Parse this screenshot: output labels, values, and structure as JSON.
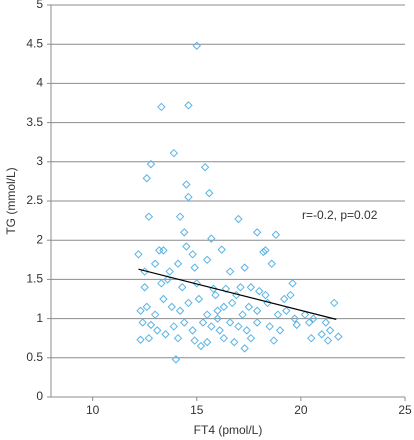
{
  "chart_data": {
    "type": "scatter",
    "xlabel": "FT4 (pmol/L)",
    "ylabel": "TG (mmol/L)",
    "annotation": "r=-0.2, p=0.02",
    "xlim": [
      8,
      25
    ],
    "xticks": [
      10,
      15,
      20,
      25
    ],
    "ylim": [
      0,
      5
    ],
    "yticks": [
      0,
      0.5,
      1,
      1.5,
      2,
      2.5,
      3,
      3.5,
      4,
      4.5,
      5
    ],
    "grid": true,
    "series": [
      {
        "color": "#5ab4e5",
        "x": [
          15.0,
          13.3,
          14.6,
          13.9,
          12.8,
          15.4,
          14.5,
          12.6,
          14.6,
          15.6,
          17.0,
          12.7,
          14.2,
          15.7,
          17.9,
          18.8,
          14.4,
          12.2,
          13.2,
          13.4,
          14.5,
          14.8,
          16.2,
          18.2,
          18.3,
          12.5,
          13.0,
          13.7,
          14.1,
          14.9,
          15.5,
          16.6,
          17.3,
          18.6,
          19.6,
          12.5,
          13.3,
          13.6,
          14.3,
          15.0,
          15.8,
          16.4,
          17.1,
          17.6,
          18.3,
          19.5,
          12.3,
          12.6,
          13.0,
          13.4,
          13.8,
          14.2,
          14.6,
          15.1,
          15.5,
          16.0,
          16.3,
          16.7,
          17.2,
          17.5,
          17.9,
          18.4,
          18.9,
          19.3,
          19.7,
          20.2,
          20.6,
          21.2,
          21.6,
          12.4,
          12.8,
          13.1,
          13.9,
          14.4,
          14.8,
          15.3,
          15.7,
          16.1,
          16.6,
          17.0,
          17.4,
          17.9,
          18.5,
          19.0,
          19.8,
          20.4,
          21.0,
          21.4,
          21.8,
          12.3,
          12.7,
          13.5,
          14.1,
          14.9,
          15.2,
          15.5,
          16.3,
          16.8,
          17.3,
          17.6,
          18.7,
          20.5,
          21.3,
          14.0,
          16.0,
          15.9,
          16.9,
          18.0,
          19.2
        ],
        "values": [
          4.48,
          3.7,
          3.72,
          3.11,
          2.97,
          2.93,
          2.71,
          2.79,
          2.55,
          2.6,
          2.27,
          2.3,
          2.3,
          2.02,
          2.1,
          2.07,
          2.1,
          1.82,
          1.87,
          1.87,
          1.92,
          1.82,
          1.88,
          1.85,
          1.87,
          1.6,
          1.7,
          1.6,
          1.7,
          1.65,
          1.75,
          1.6,
          1.65,
          1.7,
          1.45,
          1.4,
          1.45,
          1.5,
          1.4,
          1.45,
          1.38,
          1.38,
          1.4,
          1.4,
          1.3,
          1.3,
          1.1,
          1.15,
          1.05,
          1.25,
          1.15,
          1.1,
          1.2,
          1.25,
          1.05,
          1.1,
          1.15,
          1.2,
          1.05,
          1.15,
          1.1,
          1.2,
          1.05,
          1.1,
          1.0,
          1.05,
          1.0,
          0.95,
          1.2,
          0.95,
          0.92,
          0.85,
          0.9,
          0.95,
          0.85,
          0.95,
          0.9,
          0.85,
          0.95,
          0.9,
          0.85,
          0.95,
          0.9,
          0.85,
          0.92,
          0.95,
          0.8,
          0.85,
          0.77,
          0.73,
          0.75,
          0.8,
          0.75,
          0.72,
          0.65,
          0.7,
          0.75,
          0.7,
          0.62,
          0.75,
          0.72,
          0.75,
          0.72,
          0.48,
          1.0,
          1.3,
          1.3,
          1.35,
          1.25
        ]
      }
    ],
    "trendline": {
      "color": "#000000",
      "x": [
        12.2,
        21.7
      ],
      "values": [
        1.63,
        0.99
      ]
    }
  }
}
